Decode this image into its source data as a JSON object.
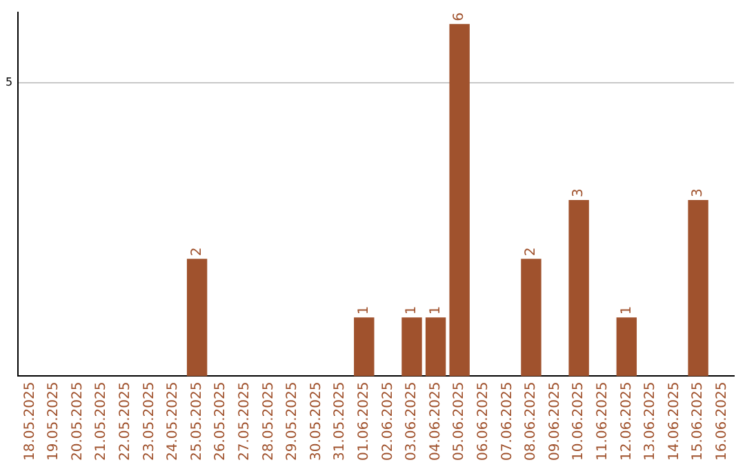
{
  "chart_data": {
    "type": "bar",
    "categories": [
      "18.05.2025",
      "19.05.2025",
      "20.05.2025",
      "21.05.2025",
      "22.05.2025",
      "23.05.2025",
      "24.05.2025",
      "25.05.2025",
      "26.05.2025",
      "27.05.2025",
      "28.05.2025",
      "29.05.2025",
      "30.05.2025",
      "31.05.2025",
      "01.06.2025",
      "02.06.2025",
      "03.06.2025",
      "04.06.2025",
      "05.06.2025",
      "06.06.2025",
      "07.06.2025",
      "08.06.2025",
      "09.06.2025",
      "10.06.2025",
      "11.06.2025",
      "12.06.2025",
      "13.06.2025",
      "14.06.2025",
      "15.06.2025",
      "16.06.2025"
    ],
    "values": [
      null,
      null,
      null,
      null,
      null,
      null,
      null,
      2,
      null,
      null,
      null,
      null,
      null,
      null,
      1,
      null,
      1,
      1,
      6,
      null,
      null,
      2,
      null,
      3,
      null,
      1,
      null,
      null,
      3,
      null
    ],
    "color": "#a0522d",
    "ylim": [
      0,
      6.2
    ],
    "yticks": [
      5
    ],
    "grid": "y",
    "data_labels": true,
    "legend": false
  }
}
